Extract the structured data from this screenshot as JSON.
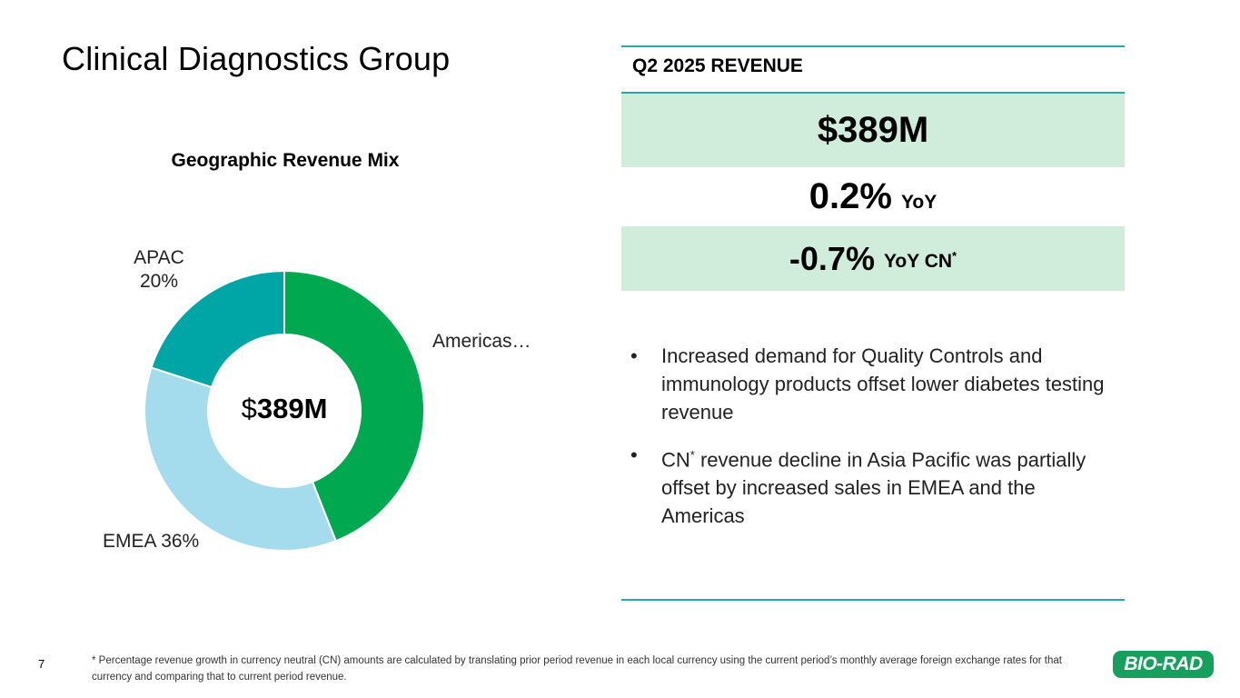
{
  "page": {
    "title": "Clinical Diagnostics Group",
    "page_number": "7",
    "footnote": "* Percentage revenue growth in currency neutral (CN) amounts are calculated by translating prior period revenue in each local currency using the current period’s monthly average foreign exchange rates for that currency and comparing that to current period revenue.",
    "logo_text": "BIO-RAD"
  },
  "chart_data": {
    "type": "pie",
    "variant": "donut",
    "title": "Geographic Revenue Mix",
    "center_label_prefix": "$",
    "center_label_value": "389M",
    "slices": [
      {
        "name": "Americas",
        "value": 44,
        "label": "Americas…",
        "color": "#00a84f"
      },
      {
        "name": "EMEA",
        "value": 36,
        "label": "EMEA 36%",
        "color": "#a5dced"
      },
      {
        "name": "APAC",
        "value": 20,
        "label_line1": "APAC",
        "label_line2": "20%",
        "color": "#00a6a6"
      }
    ]
  },
  "revenue_panel": {
    "header": "Q2 2025 REVENUE",
    "total": "$389M",
    "yoy_value": "0.2%",
    "yoy_unit": "YoY",
    "cn_value": "-0.7%",
    "cn_unit": "YoY CN",
    "cn_marker": "*"
  },
  "bullets": [
    {
      "marker": "•",
      "text": "Increased demand for Quality Controls and immunology products offset lower diabetes testing revenue"
    },
    {
      "marker": "•",
      "prefix": "CN",
      "sup": "*",
      "text": " revenue decline in Asia Pacific was partially offset by increased sales in EMEA and the Americas"
    }
  ]
}
